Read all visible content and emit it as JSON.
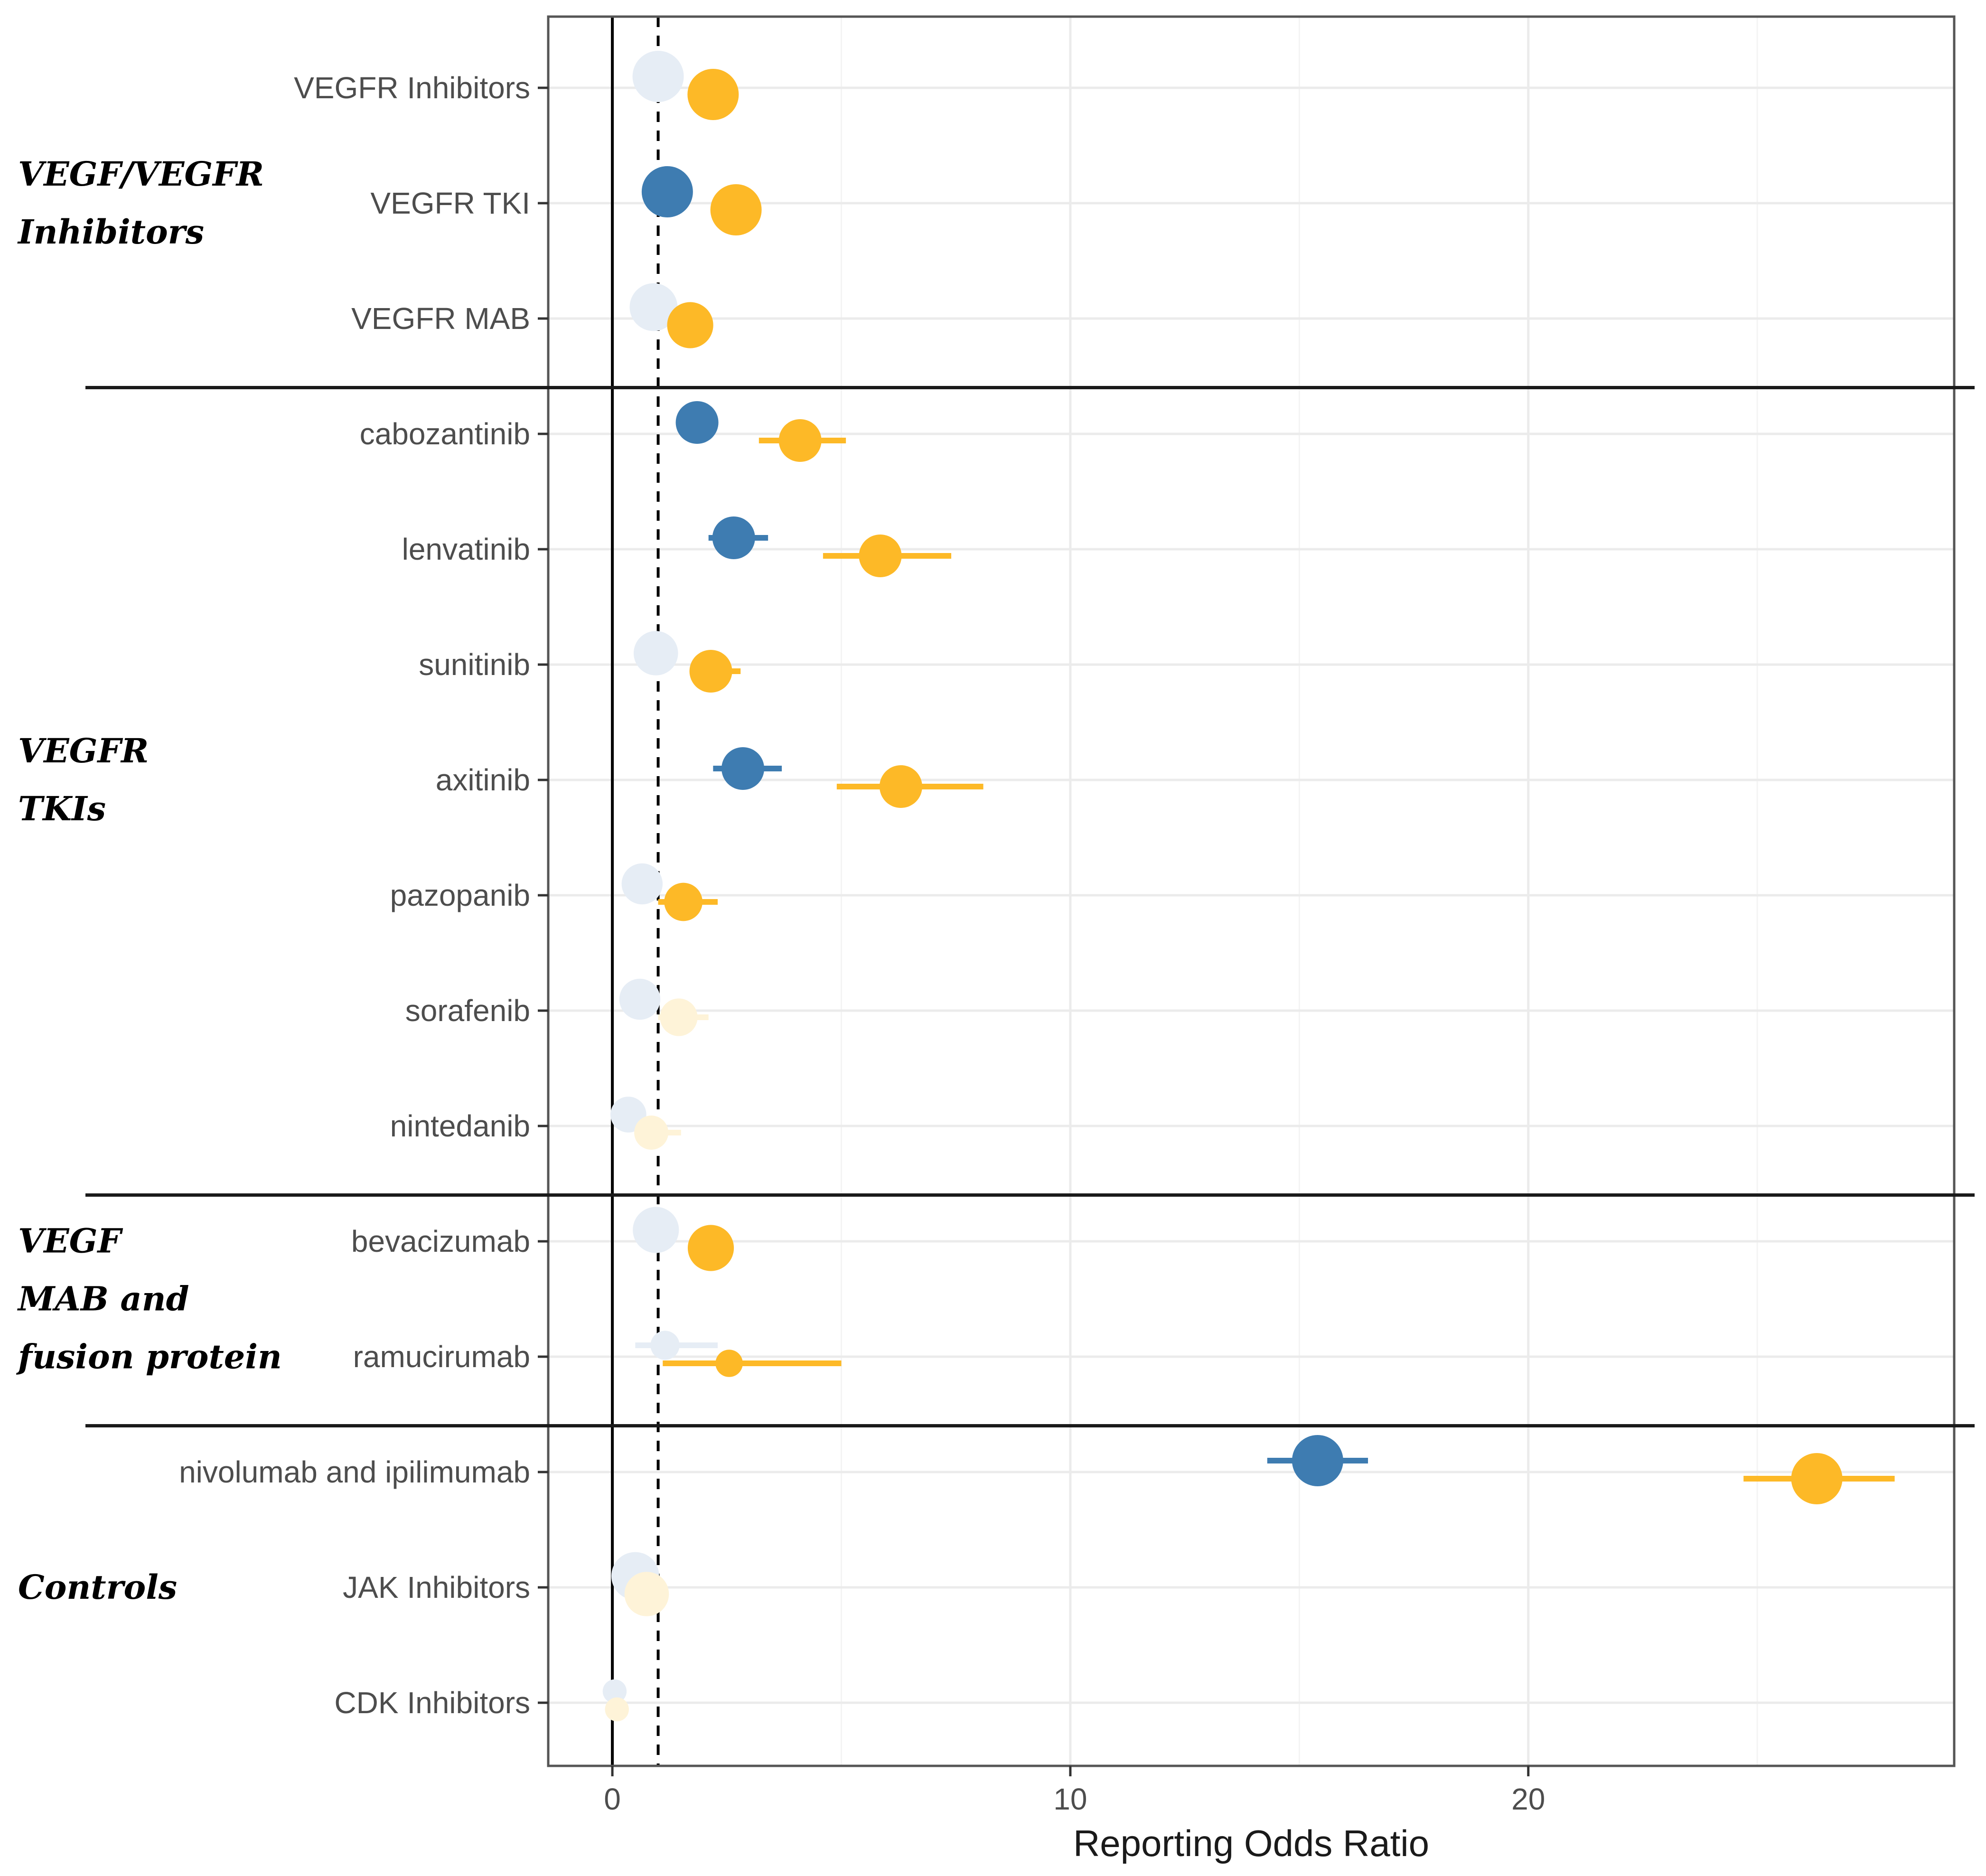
{
  "chart_data": {
    "type": "forest",
    "xlabel": "Reporting Odds Ratio",
    "xlim": [
      -1.4,
      29.3
    ],
    "x_ticks": [
      0,
      10,
      20
    ],
    "x_tick_labels": [
      "0",
      "10",
      "20"
    ],
    "reference_lines": {
      "solid": 0,
      "dashed": 1
    },
    "grid": true,
    "colors": {
      "blue": "#3E7CB1",
      "orange": "#FDB927",
      "faded_blue": "#E6EDF5",
      "faded_orange": "#FEF3D8"
    },
    "categories": [
      "VEGFR Inhibitors",
      "VEGFR TKI",
      "VEGFR MAB",
      "cabozantinib",
      "lenvatinib",
      "sunitinib",
      "axitinib",
      "pazopanib",
      "sorafenib",
      "nintedanib",
      "bevacizumab",
      "ramucirumab",
      "nivolumab and ipilimumab",
      "JAK Inhibitors",
      "CDK Inhibitors"
    ],
    "groups": [
      {
        "label_lines": [
          "VEGF/VEGFR",
          "Inhibitors"
        ],
        "from": 0,
        "to": 2
      },
      {
        "label_lines": [
          "VEGFR",
          "TKIs"
        ],
        "from": 3,
        "to": 9
      },
      {
        "label_lines": [
          "VEGF",
          "MAB and",
          "fusion protein"
        ],
        "from": 10,
        "to": 11
      },
      {
        "label_lines": [
          "Controls"
        ],
        "from": 12,
        "to": 14
      }
    ],
    "series": [
      {
        "name": "blue",
        "color": "#3E7CB1",
        "faded_color": "#E6EDF5",
        "points": [
          {
            "est": 1.0,
            "lo": 0.9,
            "hi": 1.1,
            "significant": false,
            "weight": 1.0
          },
          {
            "est": 1.2,
            "lo": 1.1,
            "hi": 1.4,
            "significant": true,
            "weight": 1.0
          },
          {
            "est": 0.9,
            "lo": 0.8,
            "hi": 1.0,
            "significant": false,
            "weight": 0.9
          },
          {
            "est": 1.85,
            "lo": 1.6,
            "hi": 2.2,
            "significant": true,
            "weight": 0.75
          },
          {
            "est": 2.65,
            "lo": 2.1,
            "hi": 3.4,
            "significant": true,
            "weight": 0.75
          },
          {
            "est": 0.95,
            "lo": 0.8,
            "hi": 1.1,
            "significant": false,
            "weight": 0.8
          },
          {
            "est": 2.85,
            "lo": 2.2,
            "hi": 3.7,
            "significant": true,
            "weight": 0.75
          },
          {
            "est": 0.65,
            "lo": 0.4,
            "hi": 1.0,
            "significant": false,
            "weight": 0.7
          },
          {
            "est": 0.6,
            "lo": 0.4,
            "hi": 0.9,
            "significant": false,
            "weight": 0.7
          },
          {
            "est": 0.35,
            "lo": 0.2,
            "hi": 0.6,
            "significant": false,
            "weight": 0.55
          },
          {
            "est": 0.95,
            "lo": 0.8,
            "hi": 1.1,
            "significant": false,
            "weight": 0.85
          },
          {
            "est": 1.15,
            "lo": 0.5,
            "hi": 2.3,
            "significant": false,
            "weight": 0.35
          },
          {
            "est": 15.4,
            "lo": 14.3,
            "hi": 16.5,
            "significant": true,
            "weight": 1.0
          },
          {
            "est": 0.5,
            "lo": 0.4,
            "hi": 0.7,
            "significant": false,
            "weight": 0.9
          },
          {
            "est": 0.05,
            "lo": 0.0,
            "hi": 0.15,
            "significant": false,
            "weight": 0.2
          }
        ]
      },
      {
        "name": "orange",
        "color": "#FDB927",
        "faded_color": "#FEF3D8",
        "points": [
          {
            "est": 2.2,
            "lo": 2.1,
            "hi": 2.3,
            "significant": true,
            "weight": 1.0
          },
          {
            "est": 2.7,
            "lo": 2.5,
            "hi": 2.9,
            "significant": true,
            "weight": 1.0
          },
          {
            "est": 1.7,
            "lo": 1.6,
            "hi": 1.8,
            "significant": true,
            "weight": 0.85
          },
          {
            "est": 4.1,
            "lo": 3.2,
            "hi": 5.1,
            "significant": true,
            "weight": 0.75
          },
          {
            "est": 5.85,
            "lo": 4.6,
            "hi": 7.4,
            "significant": true,
            "weight": 0.75
          },
          {
            "est": 2.15,
            "lo": 1.7,
            "hi": 2.8,
            "significant": true,
            "weight": 0.75
          },
          {
            "est": 6.3,
            "lo": 4.9,
            "hi": 8.1,
            "significant": true,
            "weight": 0.75
          },
          {
            "est": 1.55,
            "lo": 1.0,
            "hi": 2.3,
            "significant": true,
            "weight": 0.62
          },
          {
            "est": 1.45,
            "lo": 1.0,
            "hi": 2.1,
            "significant": false,
            "weight": 0.6
          },
          {
            "est": 0.85,
            "lo": 0.5,
            "hi": 1.5,
            "significant": false,
            "weight": 0.5
          },
          {
            "est": 2.15,
            "lo": 2.0,
            "hi": 2.3,
            "significant": true,
            "weight": 0.85
          },
          {
            "est": 2.55,
            "lo": 1.1,
            "hi": 5.0,
            "significant": true,
            "weight": 0.3
          },
          {
            "est": 26.3,
            "lo": 24.7,
            "hi": 28.0,
            "significant": true,
            "weight": 1.0
          },
          {
            "est": 0.75,
            "lo": 0.6,
            "hi": 0.95,
            "significant": false,
            "weight": 0.8
          },
          {
            "est": 0.1,
            "lo": 0.0,
            "hi": 0.2,
            "significant": false,
            "weight": 0.2
          }
        ]
      }
    ]
  }
}
